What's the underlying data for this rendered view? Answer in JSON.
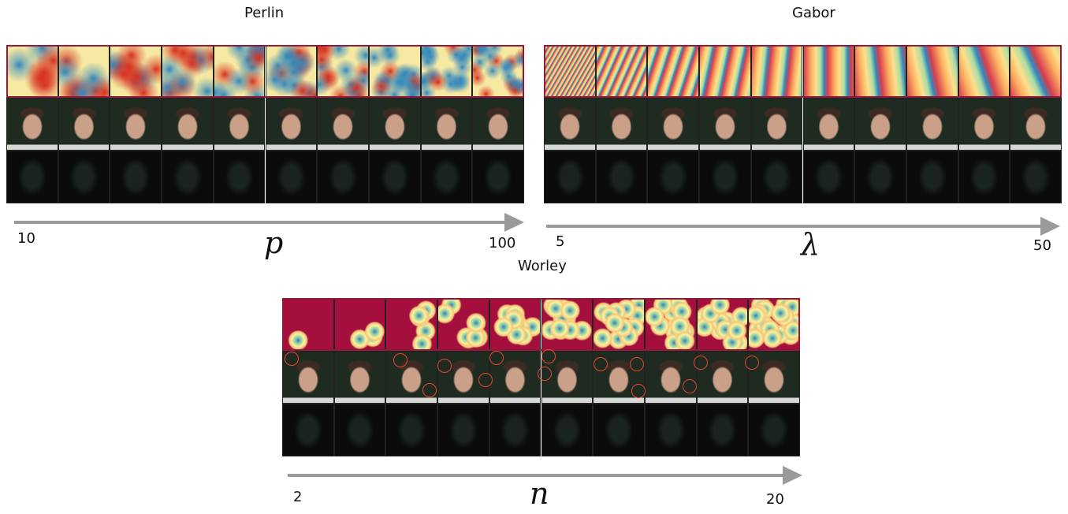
{
  "panels": [
    {
      "title": "Perlin",
      "start": 10,
      "end": 100,
      "symbol": "p"
    },
    {
      "title": "Gabor",
      "start": 5,
      "end": 50,
      "symbol": "λ"
    },
    {
      "title": "Worley",
      "start": 2,
      "end": 20,
      "symbol": "n"
    }
  ]
}
